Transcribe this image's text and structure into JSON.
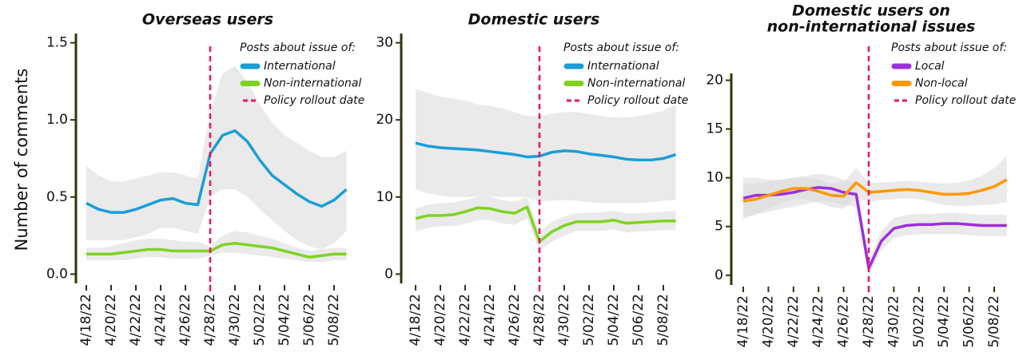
{
  "ylabel": "Number of comments",
  "chart_data": [
    {
      "type": "line",
      "title": [
        "Overseas users"
      ],
      "categories": [
        "4/18/22",
        null,
        "4/20/22",
        null,
        "4/22/22",
        null,
        "4/24/22",
        null,
        "4/26/22",
        null,
        "4/28/22",
        null,
        "4/30/22",
        null,
        "5/02/22",
        null,
        "5/04/22",
        null,
        "5/06/22",
        null,
        "5/08/22",
        null
      ],
      "ylim": [
        -0.06,
        1.56
      ],
      "yticks": [
        {
          "value": 0,
          "label": "0.0"
        },
        0.5,
        {
          "value": 1,
          "label": "1.0"
        },
        1.5
      ],
      "legend_title": "Posts about issue of:",
      "rollout": {
        "label": "Policy rollout date",
        "at": "4/28/22",
        "color": "#e8175d"
      },
      "series": [
        {
          "name": "International",
          "color": "#1a9ed6",
          "values": [
            0.46,
            0.42,
            0.4,
            0.4,
            0.42,
            0.45,
            0.48,
            0.49,
            0.46,
            0.45,
            0.78,
            0.9,
            0.93,
            0.86,
            0.74,
            0.64,
            0.58,
            0.52,
            0.47,
            0.44,
            0.48,
            0.55
          ],
          "upper": [
            0.7,
            0.64,
            0.6,
            0.6,
            0.62,
            0.64,
            0.66,
            0.66,
            0.64,
            0.62,
            1.05,
            1.3,
            1.35,
            1.25,
            1.1,
            0.98,
            0.9,
            0.85,
            0.8,
            0.76,
            0.76,
            0.8
          ],
          "lower": [
            0.22,
            0.22,
            0.22,
            0.22,
            0.24,
            0.26,
            0.3,
            0.3,
            0.28,
            0.26,
            0.5,
            0.55,
            0.55,
            0.5,
            0.42,
            0.35,
            0.28,
            0.22,
            0.18,
            0.16,
            0.2,
            0.28
          ]
        },
        {
          "name": "Non-international",
          "color": "#7ed321",
          "values": [
            0.13,
            0.13,
            0.13,
            0.14,
            0.15,
            0.16,
            0.16,
            0.15,
            0.15,
            0.15,
            0.15,
            0.19,
            0.2,
            0.19,
            0.18,
            0.17,
            0.15,
            0.13,
            0.11,
            0.12,
            0.13,
            0.13
          ],
          "upper": [
            0.17,
            0.17,
            0.18,
            0.2,
            0.22,
            0.23,
            0.23,
            0.22,
            0.21,
            0.21,
            0.18,
            0.25,
            0.28,
            0.27,
            0.25,
            0.23,
            0.2,
            0.17,
            0.15,
            0.16,
            0.17,
            0.17
          ],
          "lower": [
            0.09,
            0.09,
            0.09,
            0.09,
            0.1,
            0.11,
            0.11,
            0.1,
            0.1,
            0.1,
            0.12,
            0.14,
            0.14,
            0.13,
            0.12,
            0.11,
            0.1,
            0.09,
            0.08,
            0.08,
            0.09,
            0.09
          ]
        }
      ]
    },
    {
      "type": "line",
      "title": [
        "Domestic users"
      ],
      "categories": [
        "4/18/22",
        null,
        "4/20/22",
        null,
        "4/22/22",
        null,
        "4/24/22",
        null,
        "4/26/22",
        null,
        "4/28/22",
        null,
        "4/30/22",
        null,
        "5/02/22",
        null,
        "5/04/22",
        null,
        "5/06/22",
        null,
        "5/08/22",
        null
      ],
      "ylim": [
        -1.2,
        31.2
      ],
      "yticks": [
        0,
        10,
        20,
        30
      ],
      "legend_title": "Posts about issue of:",
      "rollout": {
        "label": "Policy rollout date",
        "at": "4/28/22",
        "color": "#e8175d"
      },
      "series": [
        {
          "name": "International",
          "color": "#1a9ed6",
          "values": [
            17,
            16.6,
            16.4,
            16.3,
            16.2,
            16.1,
            15.9,
            15.7,
            15.5,
            15.2,
            15.3,
            15.8,
            16.0,
            15.9,
            15.6,
            15.4,
            15.2,
            14.9,
            14.8,
            14.8,
            15.0,
            15.5
          ],
          "upper": [
            24,
            23.5,
            23,
            22.8,
            22.5,
            22,
            21.8,
            21.5,
            21,
            20.5,
            20.5,
            20.8,
            21,
            21,
            20.8,
            20.5,
            20.3,
            20.3,
            20.5,
            20.8,
            21.2,
            22
          ],
          "lower": [
            11,
            10.5,
            10.2,
            10,
            10,
            10,
            10,
            10,
            10,
            10,
            9.5,
            9.5,
            9.6,
            9.5,
            9.3,
            9.2,
            9.2,
            9.2,
            9.2,
            9.3,
            9.5,
            9.6
          ]
        },
        {
          "name": "Non-international",
          "color": "#7ed321",
          "values": [
            7.2,
            7.6,
            7.6,
            7.7,
            8.1,
            8.6,
            8.5,
            8.1,
            7.9,
            8.7,
            4.2,
            5.5,
            6.3,
            6.8,
            6.8,
            6.8,
            7.0,
            6.6,
            6.7,
            6.8,
            6.9,
            6.9
          ],
          "upper": [
            8.5,
            9,
            9.2,
            9.3,
            9.6,
            10,
            10,
            9.6,
            9.4,
            10,
            5.5,
            6.8,
            7.5,
            7.9,
            8,
            8,
            8.2,
            7.9,
            7.9,
            8,
            8.1,
            8.2
          ],
          "lower": [
            5.5,
            6,
            6.2,
            6.2,
            6.5,
            7,
            7,
            6.6,
            6.4,
            7.2,
            3,
            4.2,
            5,
            5.6,
            5.6,
            5.6,
            5.8,
            5.4,
            5.5,
            5.6,
            5.7,
            5.7
          ]
        }
      ]
    },
    {
      "type": "line",
      "title": [
        "Domestic users on",
        "non-international issues"
      ],
      "categories": [
        "4/18/22",
        null,
        "4/20/22",
        null,
        "4/22/22",
        null,
        "4/24/22",
        null,
        "4/26/22",
        null,
        "4/28/22",
        null,
        "4/30/22",
        null,
        "5/02/22",
        null,
        "5/04/22",
        null,
        "5/06/22",
        null,
        "5/08/22",
        null
      ],
      "ylim": [
        -1,
        20.7
      ],
      "yticks": [
        0,
        5,
        10,
        15,
        20
      ],
      "legend_title": "Posts about issue of:",
      "rollout": {
        "label": "Policy rollout date",
        "at": "4/28/22",
        "color": "#e8175d"
      },
      "series": [
        {
          "name": "Local",
          "color": "#9b30d9",
          "values": [
            7.9,
            8.2,
            8.2,
            8.3,
            8.5,
            8.8,
            9.0,
            8.9,
            8.5,
            8.3,
            0.7,
            3.5,
            4.8,
            5.1,
            5.2,
            5.2,
            5.3,
            5.3,
            5.2,
            5.1,
            5.1,
            5.1
          ],
          "upper": [
            10,
            10,
            9.8,
            9.8,
            10,
            10.2,
            10.4,
            10.2,
            9.8,
            9.6,
            1.6,
            4.5,
            5.9,
            6.2,
            6.3,
            6.3,
            6.4,
            6.4,
            6.3,
            6.2,
            6.2,
            6.2
          ],
          "lower": [
            6,
            6.3,
            6.5,
            6.8,
            7,
            7.3,
            7.6,
            7.5,
            7.2,
            7,
            0,
            2.5,
            3.8,
            4.1,
            4.2,
            4.2,
            4.2,
            4.2,
            4.1,
            4,
            4,
            4
          ]
        },
        {
          "name": "Non-local",
          "color": "#ff9800",
          "values": [
            7.6,
            7.8,
            8.2,
            8.6,
            8.9,
            8.9,
            8.6,
            8.2,
            8.1,
            9.5,
            8.5,
            8.6,
            8.7,
            8.8,
            8.7,
            8.5,
            8.3,
            8.3,
            8.4,
            8.7,
            9.1,
            9.8
          ],
          "upper": [
            9.4,
            9.4,
            9.6,
            9.8,
            10,
            10,
            9.8,
            9.4,
            9.5,
            11,
            9.5,
            9.5,
            9.6,
            9.7,
            9.6,
            9.5,
            9.4,
            9.5,
            9.7,
            10.2,
            11,
            12.2
          ],
          "lower": [
            5.8,
            6.2,
            6.8,
            7.4,
            7.8,
            7.8,
            7.4,
            7,
            6.8,
            8,
            7.5,
            7.7,
            7.8,
            7.9,
            7.8,
            7.5,
            7.2,
            7.1,
            7.1,
            7.2,
            7.3,
            7.5
          ]
        }
      ]
    }
  ]
}
